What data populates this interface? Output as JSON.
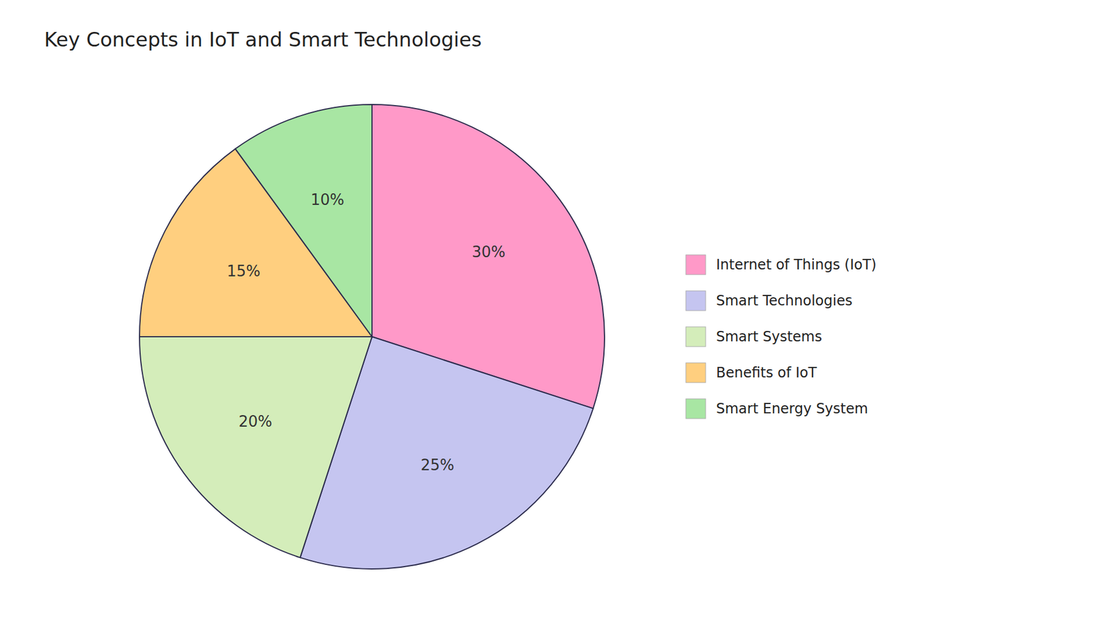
{
  "chart_data": {
    "type": "pie",
    "title": "Key Concepts in IoT and Smart Technologies",
    "categories": [
      "Internet of Things (IoT)",
      "Smart Technologies",
      "Smart Systems",
      "Benefits of IoT",
      "Smart Energy System"
    ],
    "values": [
      30,
      25,
      20,
      15,
      10
    ],
    "value_labels": [
      "30%",
      "25%",
      "20%",
      "15%",
      "10%"
    ],
    "colors": [
      "#FF99C8",
      "#C5C5F0",
      "#D4EDBA",
      "#FFCF7F",
      "#A8E6A3"
    ],
    "data_labels": true,
    "legend": "right"
  }
}
